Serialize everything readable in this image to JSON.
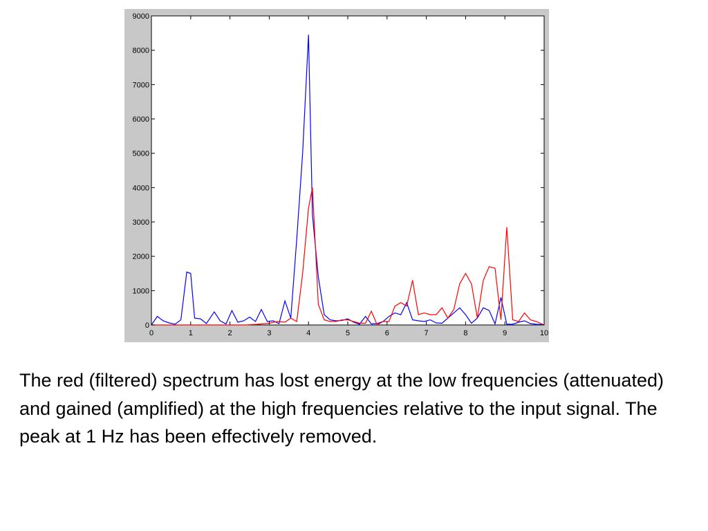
{
  "chart_data": {
    "type": "line",
    "title": "",
    "xlabel": "",
    "ylabel": "",
    "xlim": [
      0,
      10
    ],
    "ylim": [
      0,
      9000
    ],
    "xticks": [
      "0",
      "1",
      "2",
      "3",
      "4",
      "5",
      "6",
      "7",
      "8",
      "9",
      "10"
    ],
    "yticks": [
      "0",
      "1000",
      "2000",
      "3000",
      "4000",
      "5000",
      "6000",
      "7000",
      "8000",
      "9000"
    ],
    "grid": false,
    "legend": "none",
    "series": [
      {
        "color": "#0000ff",
        "x": [
          0,
          0.15,
          0.3,
          0.45,
          0.6,
          0.75,
          0.9,
          1.0,
          1.1,
          1.25,
          1.4,
          1.6,
          1.75,
          1.9,
          2.05,
          2.2,
          2.35,
          2.5,
          2.65,
          2.8,
          2.95,
          3.1,
          3.25,
          3.4,
          3.55,
          3.7,
          3.85,
          4.0,
          4.1,
          4.25,
          4.4,
          4.55,
          4.7,
          4.85,
          5.0,
          5.15,
          5.3,
          5.45,
          5.6,
          5.75,
          5.9,
          6.05,
          6.2,
          6.35,
          6.5,
          6.65,
          6.8,
          6.95,
          7.1,
          7.25,
          7.4,
          7.55,
          7.7,
          7.85,
          8.0,
          8.15,
          8.3,
          8.45,
          8.6,
          8.75,
          8.9,
          9.05,
          9.2,
          9.35,
          9.5,
          9.65,
          9.8,
          10.0
        ],
        "y": [
          0,
          250,
          120,
          60,
          20,
          150,
          1540,
          1500,
          200,
          180,
          40,
          380,
          120,
          30,
          420,
          80,
          120,
          230,
          100,
          450,
          100,
          120,
          40,
          700,
          200,
          2500,
          5000,
          8450,
          3200,
          1400,
          300,
          150,
          120,
          130,
          180,
          80,
          20,
          250,
          30,
          40,
          100,
          250,
          350,
          300,
          650,
          150,
          120,
          100,
          150,
          60,
          50,
          200,
          350,
          500,
          300,
          50,
          200,
          500,
          420,
          30,
          800,
          20,
          20,
          80,
          120,
          40,
          20,
          10
        ]
      },
      {
        "color": "#ff0000",
        "x": [
          0,
          0.3,
          0.6,
          0.9,
          1.2,
          1.5,
          1.8,
          2.1,
          2.4,
          2.7,
          3.0,
          3.2,
          3.4,
          3.55,
          3.7,
          3.85,
          4.0,
          4.1,
          4.25,
          4.4,
          4.55,
          4.7,
          4.85,
          5.0,
          5.15,
          5.3,
          5.45,
          5.6,
          5.75,
          5.9,
          6.05,
          6.2,
          6.35,
          6.5,
          6.65,
          6.8,
          6.95,
          7.1,
          7.25,
          7.4,
          7.55,
          7.7,
          7.85,
          8.0,
          8.15,
          8.3,
          8.45,
          8.6,
          8.75,
          8.9,
          9.05,
          9.2,
          9.35,
          9.5,
          9.65,
          9.8,
          10.0
        ],
        "y": [
          0,
          0,
          0,
          0,
          0,
          0,
          0,
          0,
          0,
          20,
          50,
          100,
          80,
          200,
          100,
          1500,
          3400,
          4000,
          600,
          150,
          100,
          100,
          150,
          150,
          100,
          50,
          50,
          400,
          0,
          100,
          100,
          550,
          650,
          550,
          1300,
          300,
          350,
          300,
          300,
          500,
          200,
          450,
          1200,
          1500,
          1200,
          200,
          1300,
          1700,
          1650,
          150,
          2850,
          150,
          100,
          350,
          150,
          100,
          0
        ]
      }
    ]
  },
  "caption": "The red (filtered) spectrum has lost energy at the low frequencies (attenuated) and gained (amplified) at the high frequencies relative to the input signal.  The peak at 1 Hz has been effectively removed."
}
